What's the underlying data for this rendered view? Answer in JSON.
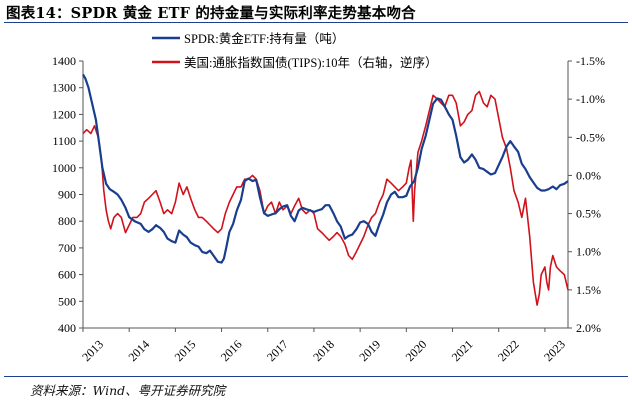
{
  "figure": {
    "title": "图表14：SPDR 黄金 ETF 的持金量与实际利率走势基本吻合",
    "source": "资料来源：Wind、粤开证券研究院"
  },
  "chart_data": {
    "type": "line",
    "x_ticks": [
      "2013",
      "2014",
      "2015",
      "2016",
      "2017",
      "2018",
      "2019",
      "2020",
      "2021",
      "2022",
      "2023"
    ],
    "y_left": {
      "ticks": [
        400,
        500,
        600,
        700,
        800,
        900,
        1000,
        1100,
        1200,
        1300,
        1400
      ],
      "lim": [
        400,
        1400
      ]
    },
    "y_right": {
      "ticks": [
        "-1.5%",
        "-1.0%",
        "-0.5%",
        "0.0%",
        "0.5%",
        "1.0%",
        "1.5%",
        "2.0%"
      ],
      "values": [
        -1.5,
        -1.0,
        -0.5,
        0.0,
        0.5,
        1.0,
        1.5,
        2.0
      ],
      "lim": [
        -1.5,
        2.0
      ],
      "inverted": true
    },
    "x_range": [
      2013.0,
      2023.5
    ],
    "series": [
      {
        "name": "SPDR:黄金ETF:持有量（吨）",
        "axis": "left",
        "color": "#1a3e8e",
        "points": [
          [
            2013.0,
            1350
          ],
          [
            2013.05,
            1335
          ],
          [
            2013.12,
            1300
          ],
          [
            2013.2,
            1240
          ],
          [
            2013.28,
            1180
          ],
          [
            2013.35,
            1090
          ],
          [
            2013.42,
            1000
          ],
          [
            2013.5,
            940
          ],
          [
            2013.58,
            920
          ],
          [
            2013.67,
            910
          ],
          [
            2013.75,
            900
          ],
          [
            2013.83,
            880
          ],
          [
            2013.92,
            850
          ],
          [
            2014.0,
            815
          ],
          [
            2014.12,
            800
          ],
          [
            2014.25,
            790
          ],
          [
            2014.33,
            770
          ],
          [
            2014.42,
            760
          ],
          [
            2014.5,
            770
          ],
          [
            2014.58,
            785
          ],
          [
            2014.67,
            775
          ],
          [
            2014.75,
            760
          ],
          [
            2014.83,
            735
          ],
          [
            2014.92,
            725
          ],
          [
            2015.0,
            720
          ],
          [
            2015.08,
            765
          ],
          [
            2015.17,
            750
          ],
          [
            2015.25,
            740
          ],
          [
            2015.33,
            720
          ],
          [
            2015.42,
            710
          ],
          [
            2015.5,
            705
          ],
          [
            2015.58,
            685
          ],
          [
            2015.67,
            680
          ],
          [
            2015.75,
            690
          ],
          [
            2015.83,
            670
          ],
          [
            2015.92,
            648
          ],
          [
            2016.0,
            645
          ],
          [
            2016.05,
            660
          ],
          [
            2016.1,
            700
          ],
          [
            2016.17,
            760
          ],
          [
            2016.25,
            790
          ],
          [
            2016.33,
            840
          ],
          [
            2016.42,
            880
          ],
          [
            2016.5,
            950
          ],
          [
            2016.58,
            960
          ],
          [
            2016.67,
            950
          ],
          [
            2016.75,
            955
          ],
          [
            2016.83,
            890
          ],
          [
            2016.92,
            830
          ],
          [
            2017.0,
            820
          ],
          [
            2017.08,
            825
          ],
          [
            2017.17,
            830
          ],
          [
            2017.25,
            845
          ],
          [
            2017.33,
            855
          ],
          [
            2017.42,
            860
          ],
          [
            2017.5,
            820
          ],
          [
            2017.58,
            800
          ],
          [
            2017.67,
            840
          ],
          [
            2017.75,
            850
          ],
          [
            2017.83,
            845
          ],
          [
            2017.92,
            840
          ],
          [
            2018.0,
            835
          ],
          [
            2018.08,
            840
          ],
          [
            2018.17,
            845
          ],
          [
            2018.25,
            860
          ],
          [
            2018.33,
            860
          ],
          [
            2018.42,
            830
          ],
          [
            2018.5,
            800
          ],
          [
            2018.58,
            780
          ],
          [
            2018.67,
            735
          ],
          [
            2018.75,
            745
          ],
          [
            2018.83,
            750
          ],
          [
            2018.92,
            770
          ],
          [
            2019.0,
            795
          ],
          [
            2019.08,
            800
          ],
          [
            2019.17,
            790
          ],
          [
            2019.25,
            760
          ],
          [
            2019.33,
            745
          ],
          [
            2019.42,
            790
          ],
          [
            2019.5,
            825
          ],
          [
            2019.58,
            870
          ],
          [
            2019.67,
            900
          ],
          [
            2019.75,
            910
          ],
          [
            2019.83,
            890
          ],
          [
            2019.92,
            890
          ],
          [
            2020.0,
            895
          ],
          [
            2020.08,
            930
          ],
          [
            2020.17,
            950
          ],
          [
            2020.25,
            1000
          ],
          [
            2020.33,
            1070
          ],
          [
            2020.42,
            1120
          ],
          [
            2020.5,
            1180
          ],
          [
            2020.58,
            1240
          ],
          [
            2020.67,
            1260
          ],
          [
            2020.75,
            1255
          ],
          [
            2020.83,
            1230
          ],
          [
            2020.92,
            1200
          ],
          [
            2021.0,
            1180
          ],
          [
            2021.08,
            1120
          ],
          [
            2021.17,
            1040
          ],
          [
            2021.25,
            1020
          ],
          [
            2021.33,
            1030
          ],
          [
            2021.42,
            1050
          ],
          [
            2021.5,
            1030
          ],
          [
            2021.58,
            1000
          ],
          [
            2021.67,
            995
          ],
          [
            2021.75,
            985
          ],
          [
            2021.83,
            975
          ],
          [
            2021.92,
            980
          ],
          [
            2022.0,
            1010
          ],
          [
            2022.08,
            1040
          ],
          [
            2022.17,
            1080
          ],
          [
            2022.25,
            1100
          ],
          [
            2022.33,
            1080
          ],
          [
            2022.42,
            1060
          ],
          [
            2022.5,
            1015
          ],
          [
            2022.58,
            995
          ],
          [
            2022.67,
            965
          ],
          [
            2022.75,
            945
          ],
          [
            2022.83,
            925
          ],
          [
            2022.92,
            915
          ],
          [
            2023.0,
            915
          ],
          [
            2023.08,
            920
          ],
          [
            2023.17,
            930
          ],
          [
            2023.25,
            920
          ],
          [
            2023.33,
            935
          ],
          [
            2023.42,
            940
          ],
          [
            2023.5,
            950
          ]
        ]
      },
      {
        "name": "美国:通胀指数国债(TIPS):10年（右轴，逆序）",
        "axis": "right",
        "color": "#d0121b",
        "points": [
          [
            2013.0,
            -0.55
          ],
          [
            2013.08,
            -0.6
          ],
          [
            2013.17,
            -0.55
          ],
          [
            2013.25,
            -0.65
          ],
          [
            2013.33,
            -0.5
          ],
          [
            2013.4,
            -0.2
          ],
          [
            2013.45,
            0.2
          ],
          [
            2013.5,
            0.45
          ],
          [
            2013.55,
            0.6
          ],
          [
            2013.6,
            0.7
          ],
          [
            2013.67,
            0.55
          ],
          [
            2013.75,
            0.5
          ],
          [
            2013.83,
            0.55
          ],
          [
            2013.92,
            0.75
          ],
          [
            2014.0,
            0.65
          ],
          [
            2014.08,
            0.55
          ],
          [
            2014.17,
            0.55
          ],
          [
            2014.25,
            0.5
          ],
          [
            2014.33,
            0.35
          ],
          [
            2014.42,
            0.3
          ],
          [
            2014.5,
            0.25
          ],
          [
            2014.58,
            0.2
          ],
          [
            2014.67,
            0.35
          ],
          [
            2014.75,
            0.5
          ],
          [
            2014.83,
            0.45
          ],
          [
            2014.92,
            0.5
          ],
          [
            2015.0,
            0.35
          ],
          [
            2015.08,
            0.1
          ],
          [
            2015.17,
            0.25
          ],
          [
            2015.25,
            0.15
          ],
          [
            2015.33,
            0.3
          ],
          [
            2015.42,
            0.45
          ],
          [
            2015.5,
            0.55
          ],
          [
            2015.58,
            0.55
          ],
          [
            2015.67,
            0.6
          ],
          [
            2015.75,
            0.65
          ],
          [
            2015.83,
            0.7
          ],
          [
            2015.92,
            0.75
          ],
          [
            2016.0,
            0.7
          ],
          [
            2016.08,
            0.5
          ],
          [
            2016.17,
            0.35
          ],
          [
            2016.25,
            0.25
          ],
          [
            2016.33,
            0.15
          ],
          [
            2016.42,
            0.15
          ],
          [
            2016.5,
            0.05
          ],
          [
            2016.58,
            0.05
          ],
          [
            2016.67,
            0.0
          ],
          [
            2016.75,
            0.05
          ],
          [
            2016.83,
            0.2
          ],
          [
            2016.92,
            0.5
          ],
          [
            2017.0,
            0.4
          ],
          [
            2017.08,
            0.35
          ],
          [
            2017.17,
            0.5
          ],
          [
            2017.25,
            0.35
          ],
          [
            2017.33,
            0.45
          ],
          [
            2017.42,
            0.4
          ],
          [
            2017.5,
            0.5
          ],
          [
            2017.58,
            0.4
          ],
          [
            2017.67,
            0.3
          ],
          [
            2017.75,
            0.45
          ],
          [
            2017.83,
            0.5
          ],
          [
            2017.92,
            0.45
          ],
          [
            2018.0,
            0.5
          ],
          [
            2018.08,
            0.7
          ],
          [
            2018.17,
            0.75
          ],
          [
            2018.25,
            0.8
          ],
          [
            2018.33,
            0.85
          ],
          [
            2018.42,
            0.8
          ],
          [
            2018.5,
            0.75
          ],
          [
            2018.58,
            0.8
          ],
          [
            2018.67,
            0.9
          ],
          [
            2018.75,
            1.05
          ],
          [
            2018.83,
            1.1
          ],
          [
            2018.92,
            1.0
          ],
          [
            2019.0,
            0.9
          ],
          [
            2019.08,
            0.8
          ],
          [
            2019.17,
            0.65
          ],
          [
            2019.25,
            0.55
          ],
          [
            2019.33,
            0.5
          ],
          [
            2019.42,
            0.35
          ],
          [
            2019.5,
            0.25
          ],
          [
            2019.58,
            0.05
          ],
          [
            2019.67,
            0.1
          ],
          [
            2019.75,
            0.15
          ],
          [
            2019.83,
            0.2
          ],
          [
            2019.92,
            0.15
          ],
          [
            2020.0,
            0.1
          ],
          [
            2020.06,
            -0.1
          ],
          [
            2020.1,
            -0.2
          ],
          [
            2020.15,
            0.6
          ],
          [
            2020.18,
            0.2
          ],
          [
            2020.25,
            -0.3
          ],
          [
            2020.33,
            -0.45
          ],
          [
            2020.42,
            -0.65
          ],
          [
            2020.5,
            -0.85
          ],
          [
            2020.58,
            -1.05
          ],
          [
            2020.67,
            -1.0
          ],
          [
            2020.75,
            -0.95
          ],
          [
            2020.83,
            -0.9
          ],
          [
            2020.92,
            -1.05
          ],
          [
            2021.0,
            -1.05
          ],
          [
            2021.08,
            -0.95
          ],
          [
            2021.17,
            -0.65
          ],
          [
            2021.25,
            -0.7
          ],
          [
            2021.33,
            -0.8
          ],
          [
            2021.42,
            -0.85
          ],
          [
            2021.5,
            -1.05
          ],
          [
            2021.58,
            -1.1
          ],
          [
            2021.67,
            -0.95
          ],
          [
            2021.75,
            -0.9
          ],
          [
            2021.83,
            -1.05
          ],
          [
            2021.92,
            -1.0
          ],
          [
            2022.0,
            -0.75
          ],
          [
            2022.08,
            -0.5
          ],
          [
            2022.17,
            -0.35
          ],
          [
            2022.25,
            -0.1
          ],
          [
            2022.33,
            0.2
          ],
          [
            2022.42,
            0.35
          ],
          [
            2022.5,
            0.55
          ],
          [
            2022.58,
            0.3
          ],
          [
            2022.67,
            0.8
          ],
          [
            2022.75,
            1.4
          ],
          [
            2022.83,
            1.7
          ],
          [
            2022.88,
            1.55
          ],
          [
            2022.92,
            1.3
          ],
          [
            2023.0,
            1.2
          ],
          [
            2023.04,
            1.4
          ],
          [
            2023.08,
            1.5
          ],
          [
            2023.12,
            1.2
          ],
          [
            2023.17,
            1.05
          ],
          [
            2023.25,
            1.2
          ],
          [
            2023.33,
            1.25
          ],
          [
            2023.42,
            1.3
          ],
          [
            2023.5,
            1.5
          ]
        ]
      }
    ]
  }
}
